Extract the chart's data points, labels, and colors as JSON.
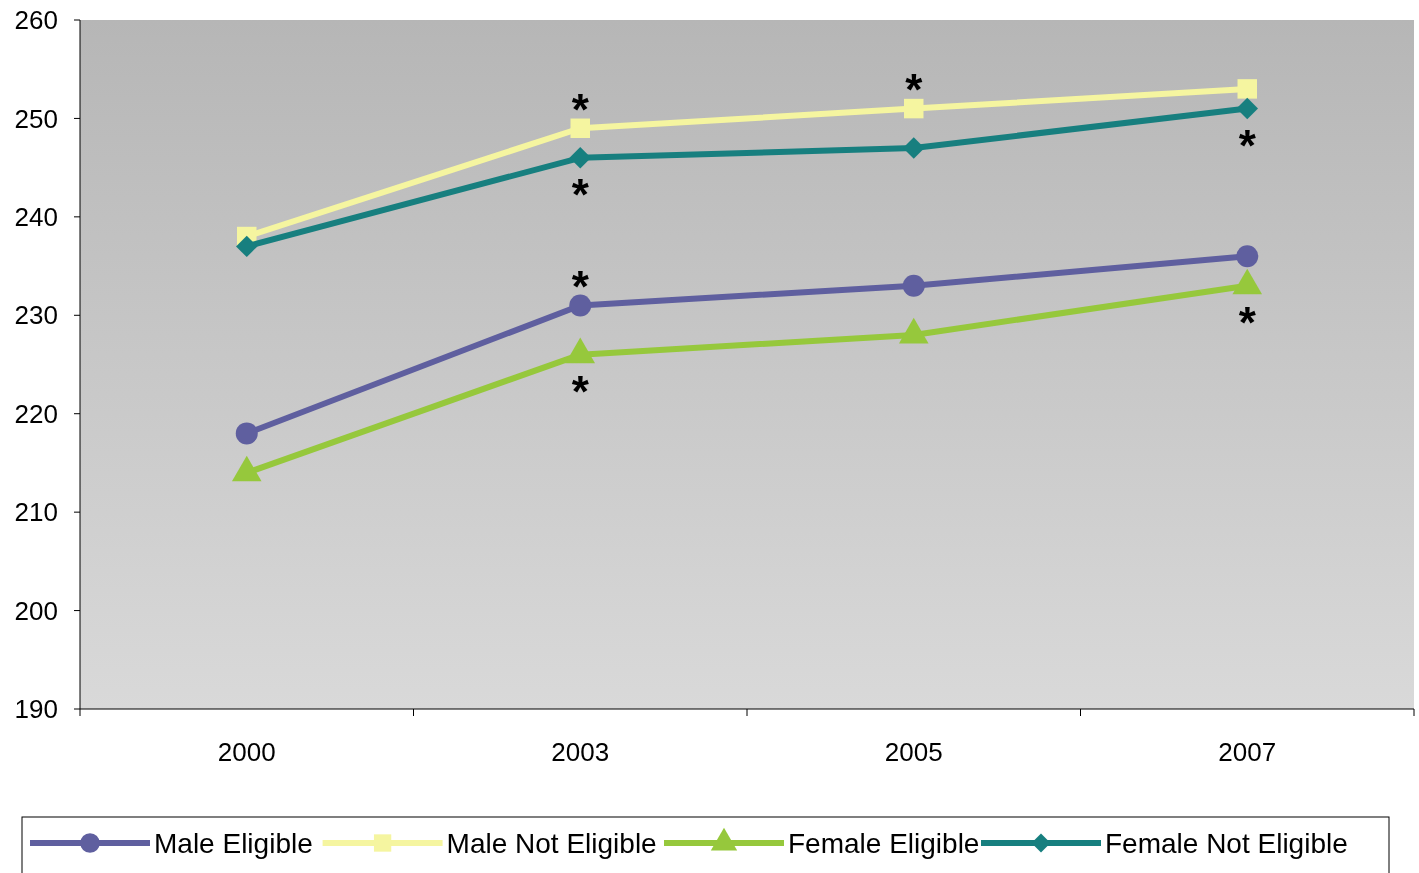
{
  "chart_data": {
    "type": "line",
    "categories": [
      "2000",
      "2003",
      "2005",
      "2007"
    ],
    "ylim": [
      190,
      260
    ],
    "yticks": [
      190,
      200,
      210,
      220,
      230,
      240,
      250,
      260
    ],
    "grid": false,
    "legend": "bottom",
    "line_style": "solid",
    "series": [
      {
        "name": "Male Eligible",
        "color": "#5f5f9f",
        "marker": "circle",
        "values": [
          218,
          231,
          233,
          236
        ]
      },
      {
        "name": "Male Not Eligible",
        "color": "#f5f5a0",
        "marker": "square",
        "values": [
          238,
          249,
          251,
          253
        ]
      },
      {
        "name": "Female Eligible",
        "color": "#96c83c",
        "marker": "triangle",
        "values": [
          214,
          226,
          228,
          233
        ]
      },
      {
        "name": "Female Not Eligible",
        "color": "#177f7f",
        "marker": "diamond",
        "values": [
          237,
          246,
          247,
          251
        ]
      }
    ],
    "annotations": [
      {
        "text": "*",
        "x": "2003",
        "y": 249
      },
      {
        "text": "*",
        "x": "2003",
        "y": 246
      },
      {
        "text": "*",
        "x": "2005",
        "y": 251
      },
      {
        "text": "*",
        "x": "2007",
        "y": 251
      },
      {
        "text": "*",
        "x": "2003",
        "y": 231
      },
      {
        "text": "*",
        "x": "2007",
        "y": 233
      },
      {
        "text": "*",
        "x": "2003",
        "y": 226
      }
    ]
  }
}
